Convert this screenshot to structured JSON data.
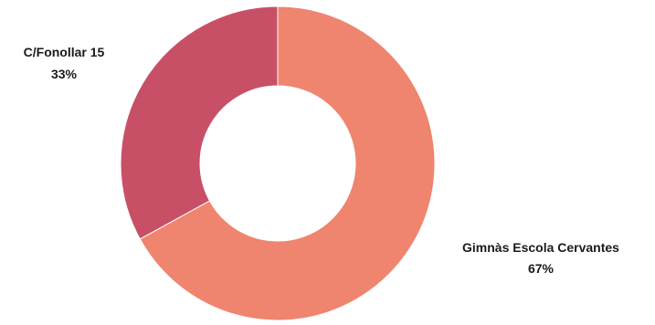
{
  "chart_data": {
    "type": "pie",
    "variant": "donut",
    "title": "",
    "legend": "none",
    "slices": [
      {
        "label": "Gimnàs Escola Cervantes",
        "percent_label": "67%",
        "value": 67,
        "color": "#ef846f"
      },
      {
        "label": "C/Fonollar 15",
        "percent_label": "33%",
        "value": 33,
        "color": "#c75067"
      }
    ],
    "start": "top",
    "direction": "clockwise"
  }
}
